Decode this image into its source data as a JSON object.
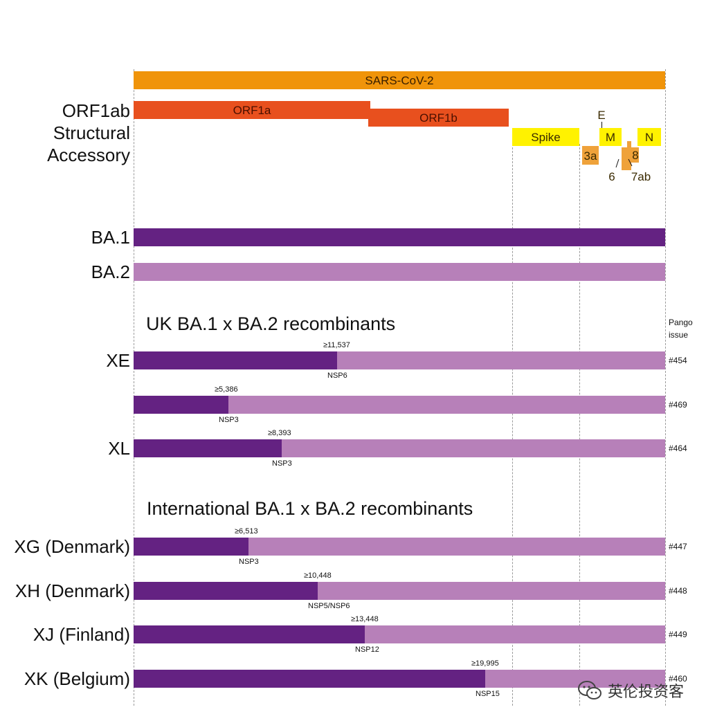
{
  "colors": {
    "sars": "#F0940A",
    "orf1": "#E8501E",
    "structural": "#FFF200",
    "accessory": "#EFA23A",
    "ba1": "#642282",
    "ba2": "#B780B9"
  },
  "genome": {
    "sars_label": "SARS-CoV-2",
    "orf1a_label": "ORF1a",
    "orf1b_label": "ORF1b",
    "spike_label": "Spike",
    "e_label": "E",
    "m_label": "M",
    "n_label": "N",
    "a3_label": "3a",
    "a6_label": "6",
    "a7ab_label": "7ab",
    "a8_label": "8"
  },
  "left_labels": {
    "orf1ab": "ORF1ab",
    "structural": "Structural",
    "accessory": "Accessory"
  },
  "parents": {
    "ba1": "BA.1",
    "ba2": "BA.2"
  },
  "issue_header": {
    "line1": "Pango",
    "line2": "issue"
  },
  "uk_section": {
    "title": "UK BA.1 x BA.2 recombinants",
    "rows": [
      {
        "name": "XE",
        "breakpoint": "≥11,537",
        "region": "NSP6",
        "issue": "#454",
        "split": 0.383
      },
      {
        "name": "",
        "breakpoint": "≥5,386",
        "region": "NSP3",
        "issue": "#469",
        "split": 0.179
      },
      {
        "name": "XL",
        "breakpoint": "≥8,393",
        "region": "NSP3",
        "issue": "#464",
        "split": 0.279
      }
    ]
  },
  "intl_section": {
    "title": "International BA.1 x BA.2 recombinants",
    "rows": [
      {
        "name": "XG (Denmark)",
        "breakpoint": "≥6,513",
        "region": "NSP3",
        "issue": "#447",
        "split": 0.216
      },
      {
        "name": "XH (Denmark)",
        "breakpoint": "≥10,448",
        "region": "NSP5/NSP6",
        "issue": "#448",
        "split": 0.347
      },
      {
        "name": "XJ (Finland)",
        "breakpoint": "≥13,448",
        "region": "NSP12",
        "issue": "#449",
        "split": 0.435
      },
      {
        "name": "XK (Belgium)",
        "breakpoint": "≥19,995",
        "region": "NSP15",
        "issue": "#460",
        "split": 0.661
      }
    ]
  },
  "watermark": "英伦投资客"
}
